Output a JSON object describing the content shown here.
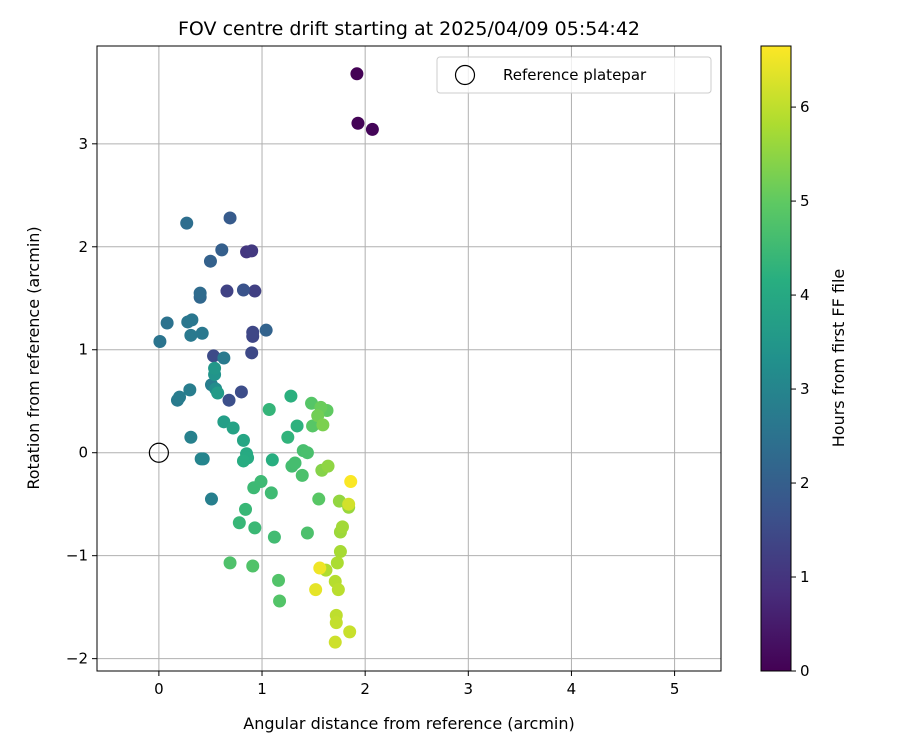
{
  "chart_data": {
    "type": "scatter",
    "title": "FOV centre drift starting at 2025/04/09 05:54:42",
    "xlabel": "Angular distance from reference (arcmin)",
    "ylabel": "Rotation from reference (arcmin)",
    "xlim": [
      -0.6,
      5.45
    ],
    "ylim": [
      -2.12,
      3.95
    ],
    "xticks": [
      0,
      1,
      2,
      3,
      4,
      5
    ],
    "yticks": [
      -2,
      -1,
      0,
      1,
      2,
      3
    ],
    "grid": true,
    "legend": {
      "position": "top-right",
      "label": "Reference platepar"
    },
    "reference_point": {
      "x": 0,
      "y": 0
    },
    "colorbar": {
      "label": "Hours from first FF file",
      "range": [
        0,
        6.65
      ],
      "ticks": [
        0,
        1,
        2,
        3,
        4,
        5,
        6
      ],
      "colormap": "viridis"
    },
    "points": [
      {
        "x": 1.92,
        "y": 3.68,
        "t": 0.02
      },
      {
        "x": 1.93,
        "y": 3.2,
        "t": 0.05
      },
      {
        "x": 2.07,
        "y": 3.14,
        "t": 0.08
      },
      {
        "x": 0.85,
        "y": 1.95,
        "t": 1.05
      },
      {
        "x": 0.9,
        "y": 1.96,
        "t": 1.1
      },
      {
        "x": 0.66,
        "y": 1.57,
        "t": 1.3
      },
      {
        "x": 0.93,
        "y": 1.57,
        "t": 1.25
      },
      {
        "x": 0.91,
        "y": 1.13,
        "t": 1.4
      },
      {
        "x": 0.91,
        "y": 1.17,
        "t": 1.42
      },
      {
        "x": 0.9,
        "y": 0.97,
        "t": 1.45
      },
      {
        "x": 0.53,
        "y": 0.94,
        "t": 1.5
      },
      {
        "x": 0.8,
        "y": 0.59,
        "t": 1.55
      },
      {
        "x": 0.68,
        "y": 0.51,
        "t": 1.6
      },
      {
        "x": 0.82,
        "y": 1.58,
        "t": 1.7
      },
      {
        "x": 0.69,
        "y": 2.28,
        "t": 1.9
      },
      {
        "x": 0.61,
        "y": 1.97,
        "t": 2.0
      },
      {
        "x": 0.5,
        "y": 1.86,
        "t": 2.05
      },
      {
        "x": 1.04,
        "y": 1.19,
        "t": 2.1
      },
      {
        "x": 0.4,
        "y": 1.51,
        "t": 2.2
      },
      {
        "x": 0.4,
        "y": 1.55,
        "t": 2.3
      },
      {
        "x": 0.27,
        "y": 2.23,
        "t": 2.4
      },
      {
        "x": 0.08,
        "y": 1.26,
        "t": 2.5
      },
      {
        "x": 0.01,
        "y": 1.08,
        "t": 2.55
      },
      {
        "x": 0.28,
        "y": 1.27,
        "t": 2.6
      },
      {
        "x": 0.32,
        "y": 1.29,
        "t": 2.62
      },
      {
        "x": 0.42,
        "y": 1.16,
        "t": 2.65
      },
      {
        "x": 0.31,
        "y": 1.14,
        "t": 2.68
      },
      {
        "x": 0.63,
        "y": 0.92,
        "t": 2.7
      },
      {
        "x": 0.18,
        "y": 0.51,
        "t": 2.72
      },
      {
        "x": 0.2,
        "y": 0.54,
        "t": 2.75
      },
      {
        "x": 0.3,
        "y": 0.61,
        "t": 2.78
      },
      {
        "x": 0.51,
        "y": 0.66,
        "t": 2.8
      },
      {
        "x": 0.51,
        "y": -0.45,
        "t": 2.85
      },
      {
        "x": 0.31,
        "y": 0.15,
        "t": 2.9
      },
      {
        "x": 0.41,
        "y": -0.06,
        "t": 2.95
      },
      {
        "x": 0.43,
        "y": -0.06,
        "t": 3.0
      },
      {
        "x": 0.55,
        "y": 0.62,
        "t": 3.2
      },
      {
        "x": 0.54,
        "y": 0.76,
        "t": 3.4
      },
      {
        "x": 0.54,
        "y": 0.82,
        "t": 3.5
      },
      {
        "x": 0.57,
        "y": 0.58,
        "t": 3.6
      },
      {
        "x": 0.63,
        "y": 0.3,
        "t": 3.7
      },
      {
        "x": 0.72,
        "y": 0.24,
        "t": 3.8
      },
      {
        "x": 0.82,
        "y": 0.12,
        "t": 3.9
      },
      {
        "x": 0.85,
        "y": -0.01,
        "t": 4.0
      },
      {
        "x": 0.86,
        "y": -0.05,
        "t": 4.05
      },
      {
        "x": 0.82,
        "y": -0.08,
        "t": 4.1
      },
      {
        "x": 1.1,
        "y": -0.07,
        "t": 4.15
      },
      {
        "x": 1.28,
        "y": 0.55,
        "t": 4.2
      },
      {
        "x": 1.34,
        "y": 0.26,
        "t": 4.25
      },
      {
        "x": 1.25,
        "y": 0.15,
        "t": 4.3
      },
      {
        "x": 1.07,
        "y": 0.42,
        "t": 4.35
      },
      {
        "x": 0.78,
        "y": -0.68,
        "t": 4.4
      },
      {
        "x": 0.84,
        "y": -0.55,
        "t": 4.42
      },
      {
        "x": 0.93,
        "y": -0.73,
        "t": 4.45
      },
      {
        "x": 0.92,
        "y": -0.34,
        "t": 4.48
      },
      {
        "x": 0.99,
        "y": -0.28,
        "t": 4.5
      },
      {
        "x": 1.09,
        "y": -0.39,
        "t": 4.52
      },
      {
        "x": 1.12,
        "y": -0.82,
        "t": 4.55
      },
      {
        "x": 1.29,
        "y": -0.13,
        "t": 4.6
      },
      {
        "x": 1.32,
        "y": -0.1,
        "t": 4.62
      },
      {
        "x": 1.4,
        "y": 0.02,
        "t": 4.65
      },
      {
        "x": 1.44,
        "y": 0.0,
        "t": 4.68
      },
      {
        "x": 1.39,
        "y": -0.22,
        "t": 4.7
      },
      {
        "x": 1.44,
        "y": -0.78,
        "t": 4.72
      },
      {
        "x": 0.69,
        "y": -1.07,
        "t": 4.75
      },
      {
        "x": 0.91,
        "y": -1.1,
        "t": 4.78
      },
      {
        "x": 1.16,
        "y": -1.24,
        "t": 4.8
      },
      {
        "x": 1.17,
        "y": -1.44,
        "t": 4.82
      },
      {
        "x": 1.48,
        "y": 0.48,
        "t": 4.85
      },
      {
        "x": 1.49,
        "y": 0.26,
        "t": 4.88
      },
      {
        "x": 1.55,
        "y": -0.45,
        "t": 4.9
      },
      {
        "x": 1.63,
        "y": 0.41,
        "t": 5.0
      },
      {
        "x": 1.57,
        "y": 0.44,
        "t": 5.1
      },
      {
        "x": 1.54,
        "y": 0.36,
        "t": 5.2
      },
      {
        "x": 1.59,
        "y": 0.27,
        "t": 5.3
      },
      {
        "x": 1.58,
        "y": -0.17,
        "t": 5.4
      },
      {
        "x": 1.64,
        "y": -0.13,
        "t": 5.5
      },
      {
        "x": 1.75,
        "y": -0.47,
        "t": 5.55
      },
      {
        "x": 1.84,
        "y": -0.53,
        "t": 5.6
      },
      {
        "x": 1.76,
        "y": -0.77,
        "t": 5.65
      },
      {
        "x": 1.78,
        "y": -0.72,
        "t": 5.7
      },
      {
        "x": 1.76,
        "y": -0.96,
        "t": 5.75
      },
      {
        "x": 1.73,
        "y": -1.07,
        "t": 5.8
      },
      {
        "x": 1.62,
        "y": -1.14,
        "t": 5.85
      },
      {
        "x": 1.71,
        "y": -1.25,
        "t": 5.9
      },
      {
        "x": 1.74,
        "y": -1.33,
        "t": 5.95
      },
      {
        "x": 1.72,
        "y": -1.58,
        "t": 6.0
      },
      {
        "x": 1.72,
        "y": -1.65,
        "t": 6.05
      },
      {
        "x": 1.85,
        "y": -1.74,
        "t": 6.1
      },
      {
        "x": 1.71,
        "y": -1.84,
        "t": 6.15
      },
      {
        "x": 1.84,
        "y": -0.5,
        "t": 6.2
      },
      {
        "x": 1.52,
        "y": -1.33,
        "t": 6.4
      },
      {
        "x": 1.56,
        "y": -1.12,
        "t": 6.5
      },
      {
        "x": 1.86,
        "y": -0.28,
        "t": 6.62
      }
    ]
  }
}
